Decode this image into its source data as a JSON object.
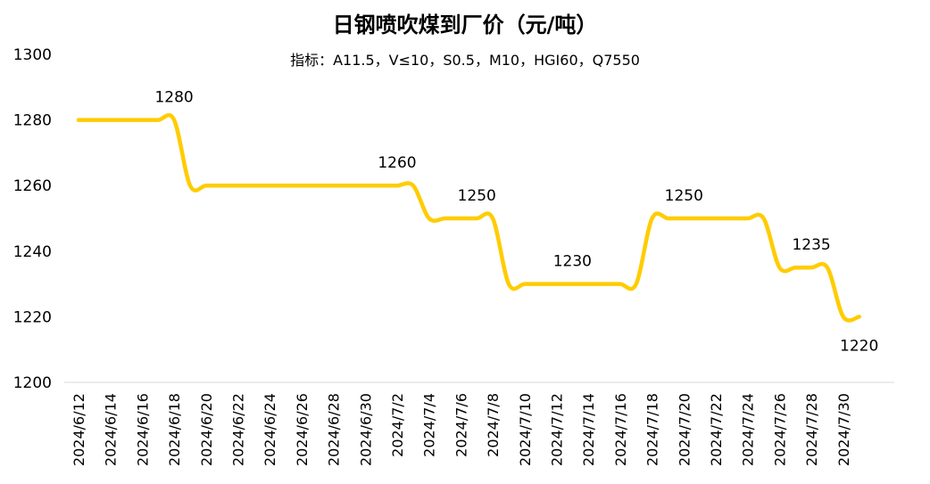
{
  "chart_data": {
    "type": "line",
    "title": "日钢喷吹煤到厂价（元/吨）",
    "subtitle": "指标：A11.5，V≤10，S0.5，M10，HGI60，Q7550",
    "xlabel": "",
    "ylabel": "",
    "ylim": [
      1200,
      1300
    ],
    "yticks": [
      "1300",
      "1280",
      "1260",
      "1240",
      "1220",
      "1200"
    ],
    "grid": false,
    "legend": "none",
    "line_color": "#FFCC00",
    "x_ticks": [
      "2024/6/12",
      "2024/6/14",
      "2024/6/16",
      "2024/6/18",
      "2024/6/20",
      "2024/6/22",
      "2024/6/24",
      "2024/6/26",
      "2024/6/28",
      "2024/6/30",
      "2024/7/2",
      "2024/7/4",
      "2024/7/6",
      "2024/7/8",
      "2024/7/10",
      "2024/7/12",
      "2024/7/14",
      "2024/7/16",
      "2024/7/18",
      "2024/7/20",
      "2024/7/22",
      "2024/7/24",
      "2024/7/26",
      "2024/7/28",
      "2024/7/30"
    ],
    "x": [
      "2024/6/12",
      "2024/6/13",
      "2024/6/14",
      "2024/6/15",
      "2024/6/16",
      "2024/6/17",
      "2024/6/18",
      "2024/6/19",
      "2024/6/20",
      "2024/6/21",
      "2024/6/22",
      "2024/6/23",
      "2024/6/24",
      "2024/6/25",
      "2024/6/26",
      "2024/6/27",
      "2024/6/28",
      "2024/6/29",
      "2024/6/30",
      "2024/7/1",
      "2024/7/2",
      "2024/7/3",
      "2024/7/4",
      "2024/7/5",
      "2024/7/6",
      "2024/7/7",
      "2024/7/8",
      "2024/7/9",
      "2024/7/10",
      "2024/7/11",
      "2024/7/12",
      "2024/7/13",
      "2024/7/14",
      "2024/7/15",
      "2024/7/16",
      "2024/7/17",
      "2024/7/18",
      "2024/7/19",
      "2024/7/20",
      "2024/7/21",
      "2024/7/22",
      "2024/7/23",
      "2024/7/24",
      "2024/7/25",
      "2024/7/26",
      "2024/7/27",
      "2024/7/28",
      "2024/7/29",
      "2024/7/30",
      "2024/7/31"
    ],
    "values": [
      1280,
      1280,
      1280,
      1280,
      1280,
      1280,
      1280,
      1260,
      1260,
      1260,
      1260,
      1260,
      1260,
      1260,
      1260,
      1260,
      1260,
      1260,
      1260,
      1260,
      1260,
      1260,
      1250,
      1250,
      1250,
      1250,
      1250,
      1230,
      1230,
      1230,
      1230,
      1230,
      1230,
      1230,
      1230,
      1230,
      1250,
      1250,
      1250,
      1250,
      1250,
      1250,
      1250,
      1250,
      1235,
      1235,
      1235,
      1235,
      1220,
      1220
    ],
    "data_labels": [
      {
        "x": "2024/6/18",
        "text": "1280"
      },
      {
        "x": "2024/7/2",
        "text": "1260"
      },
      {
        "x": "2024/7/7",
        "text": "1250"
      },
      {
        "x": "2024/7/13",
        "text": "1230"
      },
      {
        "x": "2024/7/20",
        "text": "1250"
      },
      {
        "x": "2024/7/28",
        "text": "1235"
      },
      {
        "x": "2024/7/31",
        "text": "1220"
      }
    ]
  }
}
